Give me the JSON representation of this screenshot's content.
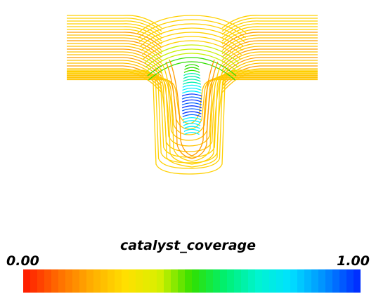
{
  "chart_data": {
    "type": "heatmap",
    "description_kind": "contour lines of a scalar field in a T-shaped domain",
    "colorbar": {
      "title": "catalyst_coverage",
      "min_label": "0.00",
      "max_label": "1.00",
      "range": [
        0,
        1
      ],
      "colors": [
        "#ff2000",
        "#ff7000",
        "#ffb000",
        "#ffe000",
        "#d8f000",
        "#30e000",
        "#00f070",
        "#00f4d0",
        "#00e0ff",
        "#0090ff",
        "#0030ff"
      ]
    },
    "palette": {
      "low": "#ff2000",
      "mid_low": "#ffc000",
      "mid": "#30e000",
      "mid_high": "#00f0ff",
      "high": "#0030ff"
    }
  }
}
